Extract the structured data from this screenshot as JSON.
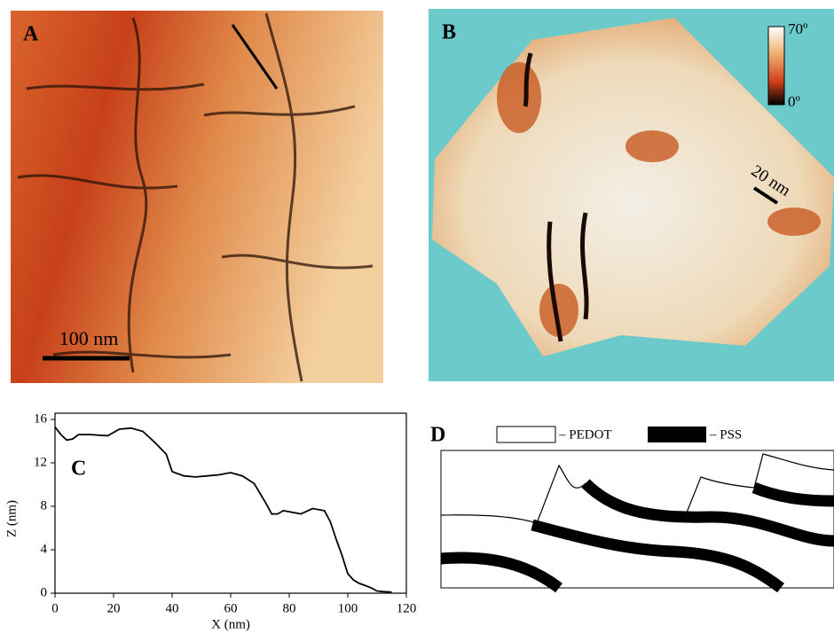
{
  "panel_a": {
    "label": "A",
    "scale_bar": "100 nm"
  },
  "panel_b": {
    "label": "B",
    "colorbar_max": "70º",
    "colorbar_min": "0º",
    "scale_bar": "20 nm"
  },
  "chart_data": {
    "type": "line",
    "panel_label": "C",
    "x_label": "X (nm)",
    "y_label": "Z (nm)",
    "x": [
      0,
      2,
      4,
      6,
      8,
      12,
      18,
      20,
      22,
      26,
      30,
      34,
      38,
      40,
      44,
      48,
      52,
      56,
      60,
      64,
      68,
      72,
      74,
      76,
      78,
      82,
      84,
      88,
      92,
      94,
      96,
      98,
      100,
      102,
      104,
      106,
      108,
      110,
      112,
      115
    ],
    "series": [
      {
        "color": "#000000",
        "values": [
          15.3,
          14.6,
          14.1,
          14.2,
          14.6,
          14.6,
          14.5,
          14.8,
          15.1,
          15.2,
          14.9,
          13.9,
          12.8,
          11.2,
          10.8,
          10.7,
          10.8,
          10.9,
          11.1,
          10.8,
          10.1,
          8.3,
          7.3,
          7.3,
          7.6,
          7.4,
          7.3,
          7.8,
          7.6,
          6.6,
          5.0,
          3.5,
          1.8,
          1.2,
          0.9,
          0.7,
          0.5,
          0.2,
          0.15,
          0.1
        ]
      }
    ],
    "xlim": [
      0,
      120
    ],
    "ylim": [
      0,
      16
    ],
    "xticks": [
      0,
      20,
      40,
      60,
      80,
      100,
      120
    ],
    "yticks": [
      0,
      4,
      8,
      12,
      16
    ]
  },
  "panel_d": {
    "label": "D",
    "legend": [
      "– PEDOT",
      "– PSS"
    ]
  }
}
